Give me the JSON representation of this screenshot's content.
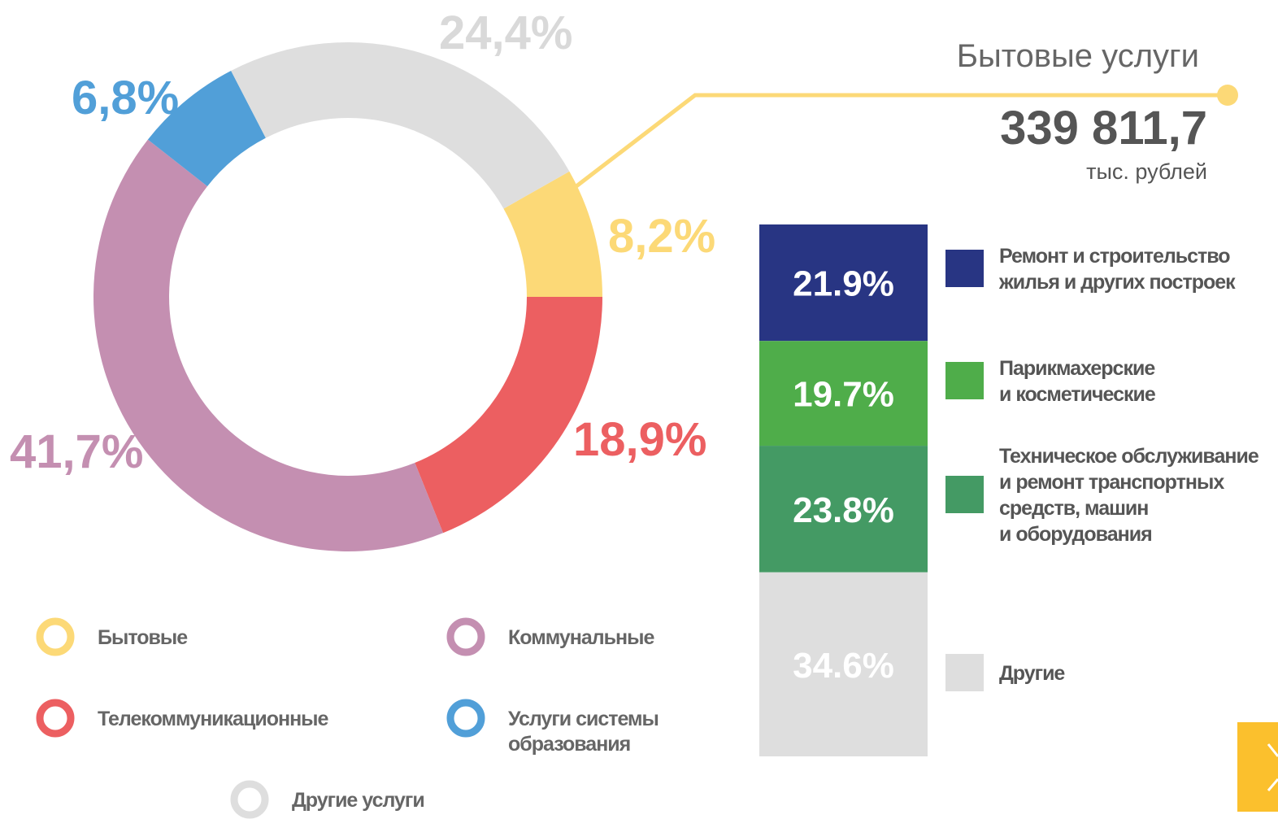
{
  "chart_data": [
    {
      "type": "donut",
      "categories": [
        [
          "Бытовые"
        ],
        [
          "Телекоммуникационные"
        ],
        [
          "Коммунальные"
        ],
        [
          "Услуги системы",
          "образования"
        ],
        [
          "Другие услуги"
        ]
      ],
      "values": [
        8.2,
        18.9,
        41.7,
        6.8,
        24.4
      ],
      "value_labels": [
        "8,2%",
        "18,9%",
        "41,7%",
        "6,8%",
        "24,4%"
      ],
      "colors": [
        "#fcd977",
        "#ec5f61",
        "#c48fb1",
        "#519fd8",
        "#dedede"
      ],
      "annotation": {
        "title": "Бытовые услуги",
        "value": 339811.7,
        "value_label": "339 811,7",
        "unit": "тыс. рублей"
      }
    },
    {
      "type": "stacked_bar",
      "series": [
        {
          "name": [
            "Ремонт и строительство",
            "жилья и других построек"
          ],
          "color": "#283583",
          "values": [
            21.9
          ],
          "value_labels": [
            "21.9%"
          ]
        },
        {
          "name": [
            "Парикмахерские",
            "и косметические"
          ],
          "color": "#4fad4a",
          "values": [
            19.7
          ],
          "value_labels": [
            "19.7%"
          ]
        },
        {
          "name": [
            "Техническое обслуживание",
            "и ремонт транспортных",
            "средств, машин",
            "и оборудования"
          ],
          "color": "#449a64",
          "values": [
            23.8
          ],
          "value_labels": [
            "23.8%"
          ]
        },
        {
          "name": [
            "Другие"
          ],
          "color": "#dedede",
          "values": [
            34.6
          ],
          "value_labels": [
            "34.6%"
          ]
        }
      ],
      "ylim": [
        0,
        100
      ]
    }
  ]
}
